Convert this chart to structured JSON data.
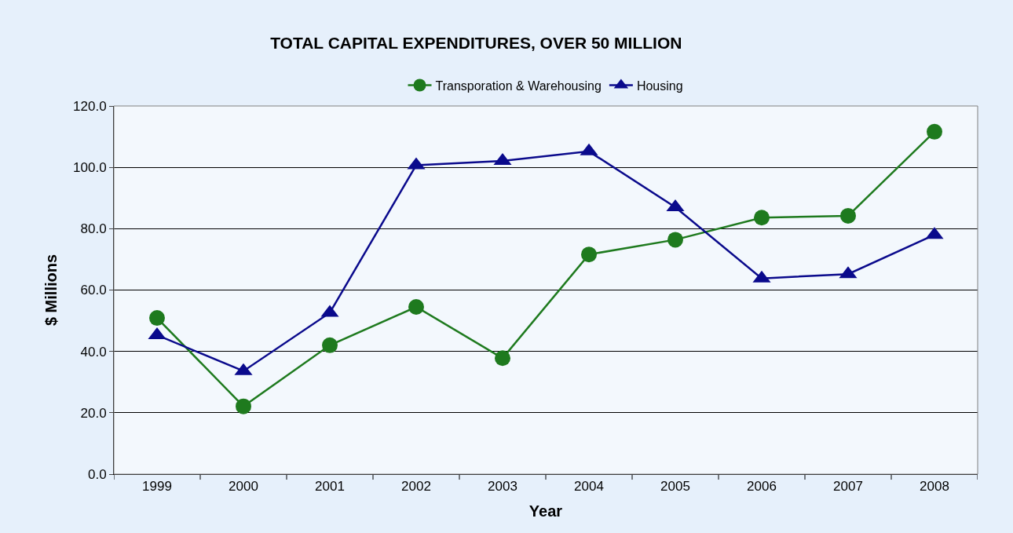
{
  "chart_data": {
    "type": "line",
    "title": "TOTAL CAPITAL EXPENDITURES, OVER 50 MILLION",
    "xlabel": "Year",
    "ylabel": "$ Millions",
    "categories": [
      "1999",
      "2000",
      "2001",
      "2002",
      "2003",
      "2004",
      "2005",
      "2006",
      "2007",
      "2008"
    ],
    "series": [
      {
        "name": "Transporation & Warehousing",
        "color": "#1e7a1e",
        "marker": "circle",
        "values": [
          50.9,
          22.1,
          42.0,
          54.5,
          37.8,
          71.6,
          76.4,
          83.6,
          84.2,
          111.6
        ]
      },
      {
        "name": "Housing",
        "color": "#0a0a8c",
        "marker": "triangle",
        "values": [
          45.3,
          33.6,
          52.6,
          100.7,
          102.1,
          105.2,
          87.0,
          63.8,
          65.2,
          78.0
        ]
      }
    ],
    "ylim": [
      0,
      120
    ],
    "yticks": [
      {
        "value": 0,
        "label": "0.0"
      },
      {
        "value": 20,
        "label": "20.0"
      },
      {
        "value": 40,
        "label": "40.0"
      },
      {
        "value": 60,
        "label": "60.0"
      },
      {
        "value": 80,
        "label": "80.0"
      },
      {
        "value": 100,
        "label": "100.0"
      },
      {
        "value": 120,
        "label": "120.0"
      }
    ],
    "grid": "y",
    "legend": "top",
    "line_style": "solid"
  }
}
